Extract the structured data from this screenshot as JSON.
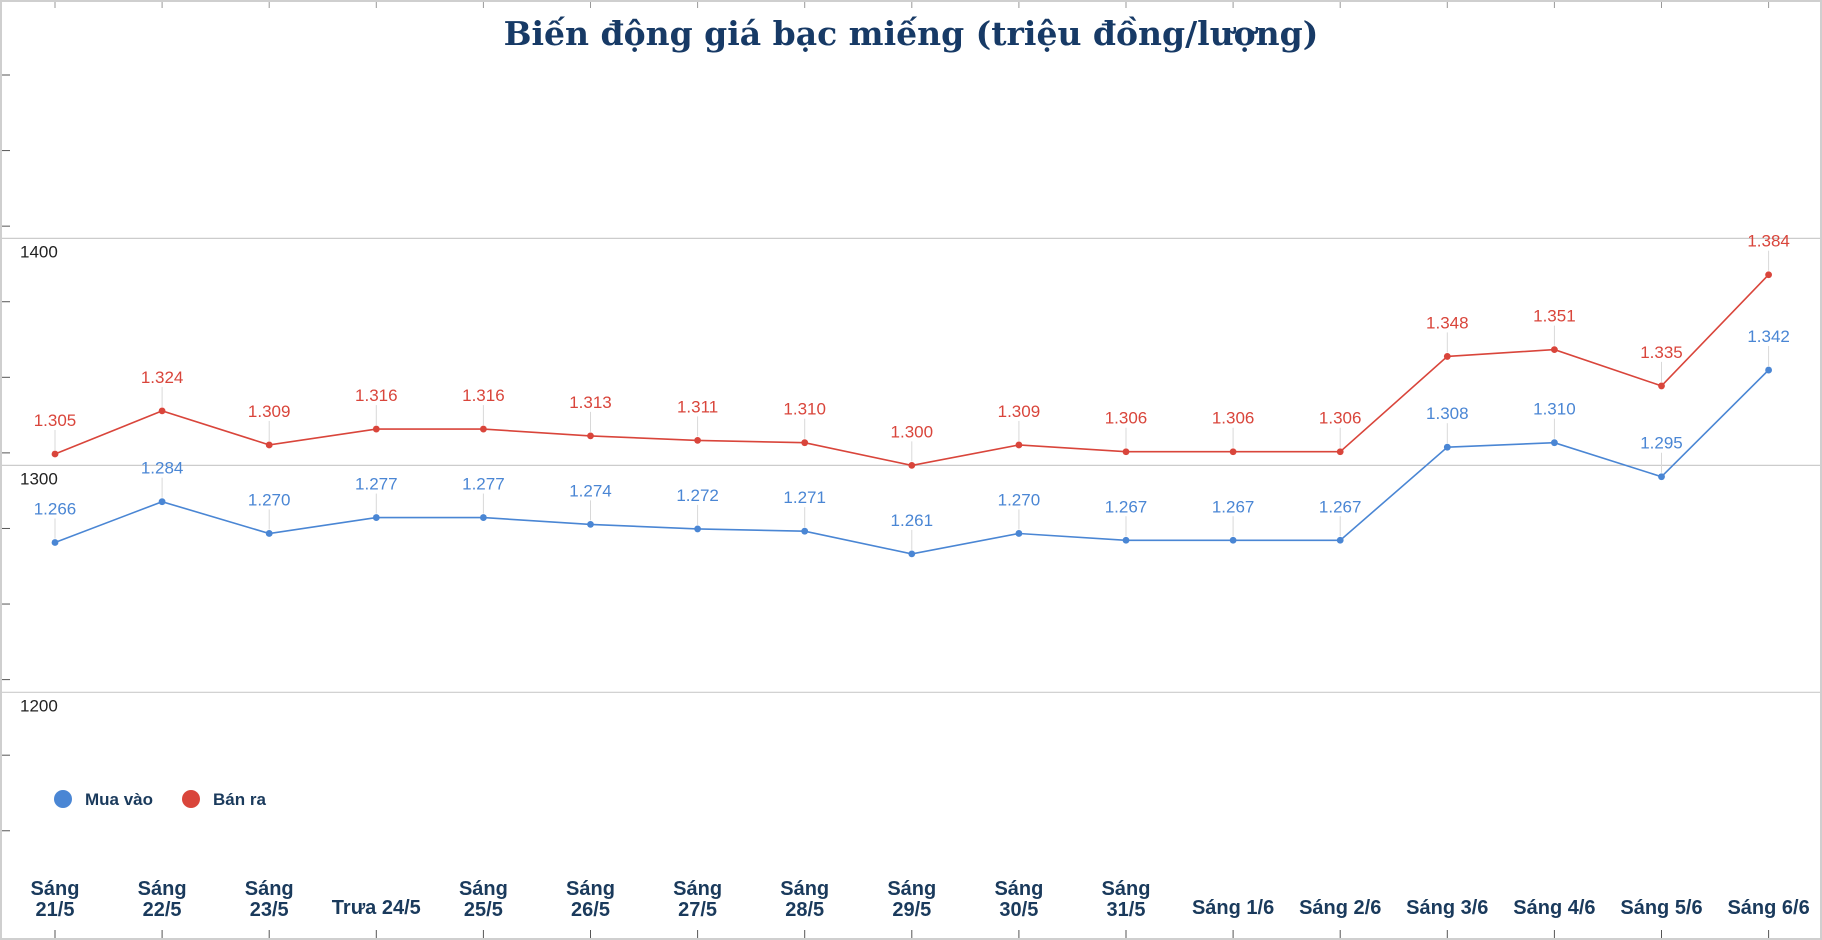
{
  "chart_data": {
    "type": "line",
    "title": "Biến động giá bạc miếng (triệu đồng/lượng)",
    "xlabel": "",
    "ylabel": "",
    "ylim": [
      1127,
      1472
    ],
    "yticks": [
      1200,
      1300,
      1400
    ],
    "grid": true,
    "legend_position": "bottom-left",
    "categories": [
      [
        "Sáng",
        "21/5"
      ],
      [
        "Sáng",
        "22/5"
      ],
      [
        "Sáng",
        "23/5"
      ],
      [
        "Trưa 24/5"
      ],
      [
        "Sáng",
        "25/5"
      ],
      [
        "Sáng",
        "26/5"
      ],
      [
        "Sáng",
        "27/5"
      ],
      [
        "Sáng",
        "28/5"
      ],
      [
        "Sáng",
        "29/5"
      ],
      [
        "Sáng",
        "30/5"
      ],
      [
        "Sáng",
        "31/5"
      ],
      [
        "Sáng 1/6"
      ],
      [
        "Sáng 2/6"
      ],
      [
        "Sáng 3/6"
      ],
      [
        "Sáng 4/6"
      ],
      [
        "Sáng 5/6"
      ],
      [
        "Sáng 6/6"
      ]
    ],
    "series": [
      {
        "name": "Mua vào",
        "color": "#4a86d4",
        "values": [
          1266,
          1284,
          1270,
          1277,
          1277,
          1274,
          1272,
          1271,
          1261,
          1270,
          1267,
          1267,
          1267,
          1308,
          1310,
          1295,
          1342
        ],
        "labels": [
          "1.266",
          "1.284",
          "1.270",
          "1.277",
          "1.277",
          "1.274",
          "1.272",
          "1.271",
          "1.261",
          "1.270",
          "1.267",
          "1.267",
          "1.267",
          "1.308",
          "1.310",
          "1.295",
          "1.342"
        ]
      },
      {
        "name": "Bán ra",
        "color": "#d9453b",
        "values": [
          1305,
          1324,
          1309,
          1316,
          1316,
          1313,
          1311,
          1310,
          1300,
          1309,
          1306,
          1306,
          1306,
          1348,
          1351,
          1335,
          1384
        ],
        "labels": [
          "1.305",
          "1.324",
          "1.309",
          "1.316",
          "1.316",
          "1.313",
          "1.311",
          "1.310",
          "1.300",
          "1.309",
          "1.306",
          "1.306",
          "1.306",
          "1.348",
          "1.351",
          "1.335",
          "1.384"
        ]
      }
    ]
  }
}
